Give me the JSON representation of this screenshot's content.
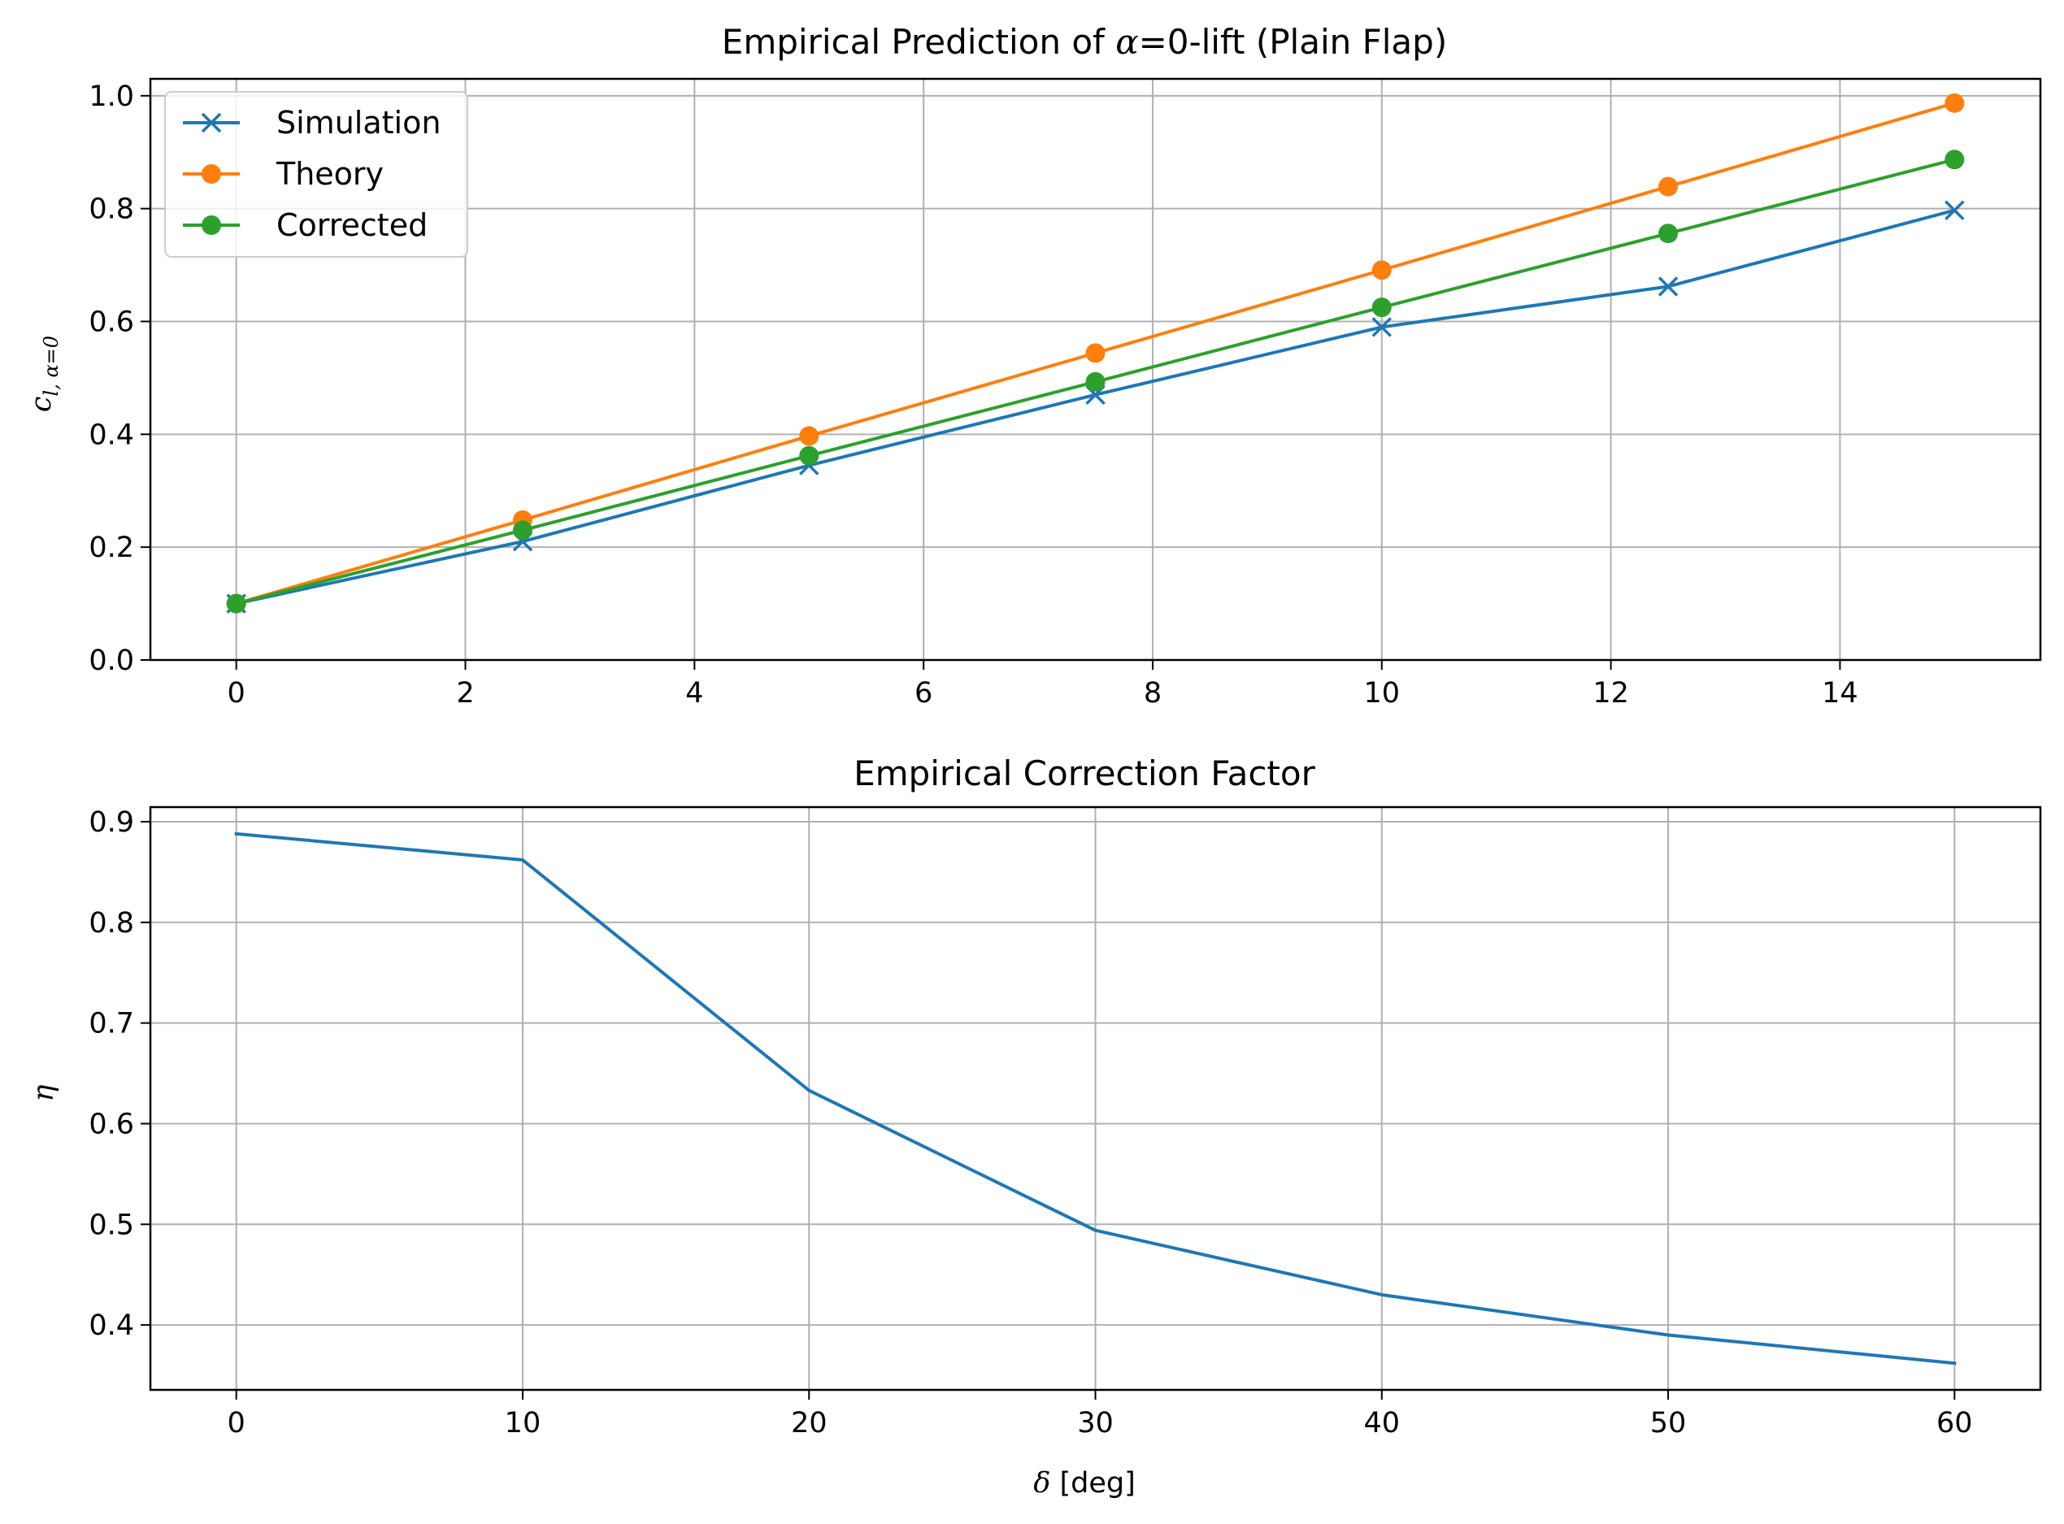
{
  "chart_data": [
    {
      "type": "line",
      "title": "Empirical Prediction of α=0-lift (Plain Flap)",
      "title_parts": {
        "pre": "Empirical Prediction of ",
        "symbol": "α",
        "post": "=0-lift (Plain Flap)"
      },
      "xlabel": "",
      "ylabel": "c_{l, α=0}",
      "ylabel_parts": {
        "main": "c",
        "sub": "l, α=0"
      },
      "xlim": [
        -0.75,
        15.75
      ],
      "ylim": [
        0.0,
        1.03
      ],
      "xticks": [
        0,
        2,
        4,
        6,
        8,
        10,
        12,
        14
      ],
      "yticks": [
        0.0,
        0.2,
        0.4,
        0.6,
        0.8,
        1.0
      ],
      "grid": true,
      "legend": "upper-left",
      "x": [
        0,
        2.5,
        5,
        7.5,
        10,
        12.5,
        15
      ],
      "series": [
        {
          "name": "Simulation",
          "color": "#1f77b4",
          "marker": "x",
          "values": [
            0.1,
            0.21,
            0.345,
            0.47,
            0.59,
            0.662,
            0.797
          ]
        },
        {
          "name": "Theory",
          "color": "#ff7f0e",
          "marker": "o",
          "values": [
            0.1,
            0.248,
            0.397,
            0.544,
            0.691,
            0.839,
            0.987
          ]
        },
        {
          "name": "Corrected",
          "color": "#2ca02c",
          "marker": "o",
          "values": [
            0.1,
            0.23,
            0.362,
            0.493,
            0.625,
            0.756,
            0.887
          ]
        }
      ]
    },
    {
      "type": "line",
      "title": "Empirical Correction Factor",
      "xlabel": "δ [deg]",
      "xlabel_parts": {
        "symbol": "δ",
        "post": " [deg]"
      },
      "ylabel": "η",
      "xlim": [
        -3,
        63
      ],
      "ylim": [
        0.3355,
        0.9145
      ],
      "xticks": [
        0,
        10,
        20,
        30,
        40,
        50,
        60
      ],
      "yticks": [
        0.4,
        0.5,
        0.6,
        0.7,
        0.8,
        0.9
      ],
      "grid": true,
      "x": [
        0,
        10,
        20,
        30,
        40,
        50,
        60
      ],
      "series": [
        {
          "color": "#1f77b4",
          "marker": "none",
          "values": [
            0.888,
            0.862,
            0.633,
            0.494,
            0.43,
            0.39,
            0.362
          ]
        }
      ]
    }
  ]
}
